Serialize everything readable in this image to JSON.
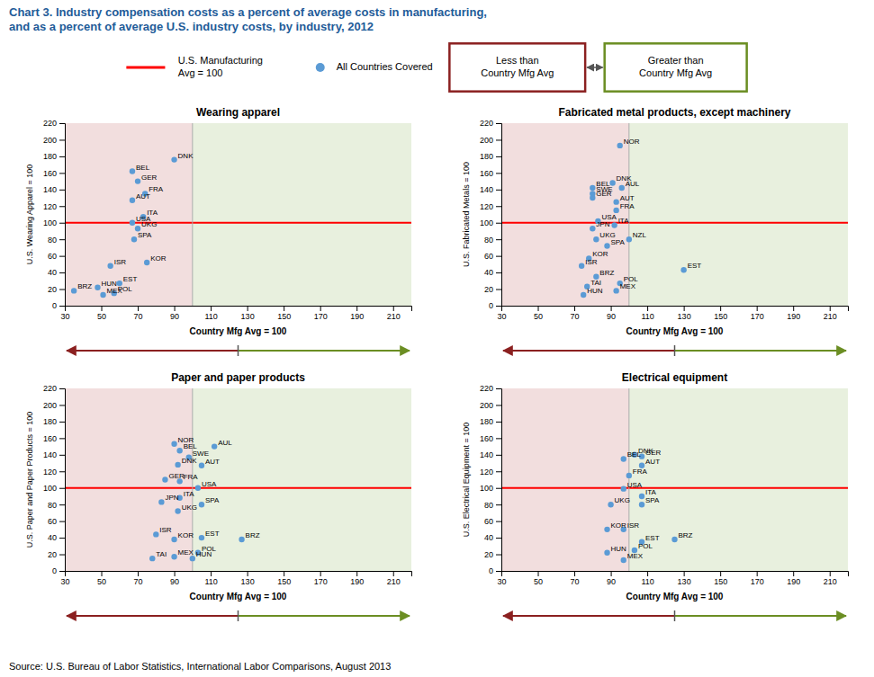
{
  "title": "Chart 3. Industry compensation costs as a percent of average costs in manufacturing,\nand as a percent of average U.S. industry costs, by industry, 2012",
  "title_color": "#1F5C99",
  "source": "Source: U.S. Bureau of Labor Statistics, International Labor Comparisons, August 2013",
  "annotations": [
    {
      "text": "U.S. Manufacturing\nAvg = 100",
      "color": "red"
    },
    {
      "text": "All Countries Covered",
      "color": "#5B9BD5"
    },
    {
      "text": "Less than\nCountry Mfg Avg",
      "color": "#8B2020"
    },
    {
      "text": "Greater than\nCountry Mfg Avg",
      "color": "#6B8E23"
    }
  ],
  "chart_data": [
    {
      "type": "scatter",
      "title": "Wearing apparel",
      "xlabel": "Country Mfg Avg = 100",
      "ylabel": "U.S. Wearing Apparel = 100",
      "labels": [
        "BRZ",
        "HUN",
        "MEX",
        "POL",
        "EST",
        "ISR",
        "KOR",
        "SPA",
        "UKG",
        "USA",
        "ITA",
        "AUT",
        "FRA",
        "GER",
        "BEL",
        "DNK"
      ],
      "x": [
        35,
        48,
        51,
        57,
        60,
        55,
        75,
        68,
        70,
        67,
        73,
        67,
        74,
        70,
        67,
        90
      ],
      "values": [
        18,
        22,
        13,
        15,
        27,
        48,
        52,
        80,
        93,
        100,
        107,
        127,
        135,
        150,
        162,
        176
      ],
      "color": "#5B9BD5",
      "xlim": [
        30,
        220
      ],
      "ylim": [
        0,
        220
      ],
      "xticks": [
        30,
        50,
        70,
        90,
        110,
        130,
        150,
        170,
        190,
        210
      ],
      "yticks": [
        0,
        20,
        40,
        60,
        80,
        100,
        120,
        140,
        160,
        180,
        200,
        220
      ],
      "grid": false,
      "reference_lines": [
        {
          "axis": "y",
          "value": 100,
          "color": "red"
        },
        {
          "axis": "x",
          "value": 100,
          "color": "#AAAAAA"
        }
      ],
      "background": [
        {
          "from": 30,
          "to": 100,
          "color": "#F2DEDE"
        },
        {
          "from": 100,
          "to": 220,
          "color": "#E8F0DE"
        }
      ]
    },
    {
      "type": "scatter",
      "title": "Fabricated metal products, except machinery",
      "xlabel": "Country Mfg Avg = 100",
      "ylabel": "U.S. Fabricated Metals = 100",
      "labels": [
        "HUN",
        "TAI",
        "BRZ",
        "POL",
        "ISR",
        "KOR",
        "SPA",
        "UKG",
        "JPN",
        "NZL",
        "ITA",
        "USA",
        "FRA",
        "AUT",
        "GER",
        "SWE",
        "BEL",
        "AUL",
        "DNK",
        "NOR",
        "EST",
        "MEX"
      ],
      "x": [
        75,
        77,
        82,
        95,
        74,
        78,
        88,
        82,
        80,
        100,
        92,
        83,
        93,
        93,
        80,
        80,
        80,
        96,
        91,
        95,
        130,
        93
      ],
      "values": [
        13,
        23,
        35,
        27,
        48,
        57,
        72,
        80,
        93,
        80,
        97,
        102,
        115,
        125,
        130,
        135,
        142,
        142,
        148,
        193,
        43,
        18
      ],
      "color": "#5B9BD5",
      "xlim": [
        30,
        220
      ],
      "ylim": [
        0,
        220
      ],
      "xticks": [
        30,
        50,
        70,
        90,
        110,
        130,
        150,
        170,
        190,
        210
      ],
      "yticks": [
        0,
        20,
        40,
        60,
        80,
        100,
        120,
        140,
        160,
        180,
        200,
        220
      ],
      "grid": false,
      "reference_lines": [
        {
          "axis": "y",
          "value": 100,
          "color": "red"
        },
        {
          "axis": "x",
          "value": 100,
          "color": "#AAAAAA"
        }
      ],
      "background": [
        {
          "from": 30,
          "to": 100,
          "color": "#F2DEDE"
        },
        {
          "from": 100,
          "to": 220,
          "color": "#E8F0DE"
        }
      ]
    },
    {
      "type": "scatter",
      "title": "Paper and paper products",
      "xlabel": "Country Mfg Avg = 100",
      "ylabel": "U.S. Paper and Paper Products = 100",
      "labels": [
        "TAI",
        "MEX",
        "POL",
        "HUN",
        "KOR",
        "ISR",
        "EST",
        "BRZ",
        "UKG",
        "SPA",
        "ITA",
        "JPN",
        "FRA",
        "GER",
        "USA",
        "AUT",
        "SWE",
        "DNK",
        "BEL",
        "AUL",
        "NOR"
      ],
      "x": [
        78,
        90,
        103,
        100,
        90,
        80,
        105,
        127,
        92,
        105,
        93,
        83,
        93,
        85,
        103,
        105,
        98,
        92,
        93,
        112,
        90
      ],
      "values": [
        15,
        17,
        22,
        15,
        38,
        44,
        40,
        38,
        72,
        80,
        88,
        83,
        108,
        110,
        100,
        127,
        137,
        128,
        145,
        150,
        153
      ],
      "color": "#5B9BD5",
      "xlim": [
        30,
        220
      ],
      "ylim": [
        0,
        220
      ],
      "xticks": [
        30,
        50,
        70,
        90,
        110,
        130,
        150,
        170,
        190,
        210
      ],
      "yticks": [
        0,
        20,
        40,
        60,
        80,
        100,
        120,
        140,
        160,
        180,
        200,
        220
      ],
      "grid": false,
      "reference_lines": [
        {
          "axis": "y",
          "value": 100,
          "color": "red"
        },
        {
          "axis": "x",
          "value": 100,
          "color": "#AAAAAA"
        }
      ],
      "background": [
        {
          "from": 30,
          "to": 100,
          "color": "#F2DEDE"
        },
        {
          "from": 100,
          "to": 220,
          "color": "#E8F0DE"
        }
      ]
    },
    {
      "type": "scatter",
      "title": "Electrical equipment",
      "xlabel": "Country Mfg Avg = 100",
      "ylabel": "U.S. Electrical Equipment = 100",
      "labels": [
        "MEX",
        "HUN",
        "POL",
        "EST",
        "BRZ",
        "KOR",
        "ISR",
        "UKG",
        "SPA",
        "ITA",
        "USA",
        "FRA",
        "AUT",
        "BEL",
        "DNK",
        "GER"
      ],
      "x": [
        97,
        88,
        103,
        107,
        125,
        88,
        97,
        90,
        107,
        107,
        97,
        100,
        107,
        97,
        103,
        107
      ],
      "values": [
        13,
        22,
        25,
        35,
        38,
        50,
        50,
        80,
        80,
        90,
        99,
        115,
        127,
        135,
        140,
        138
      ],
      "color": "#5B9BD5",
      "xlim": [
        30,
        220
      ],
      "ylim": [
        0,
        220
      ],
      "xticks": [
        30,
        50,
        70,
        90,
        110,
        130,
        150,
        170,
        190,
        210
      ],
      "yticks": [
        0,
        20,
        40,
        60,
        80,
        100,
        120,
        140,
        160,
        180,
        200,
        220
      ],
      "grid": false,
      "reference_lines": [
        {
          "axis": "y",
          "value": 100,
          "color": "red"
        },
        {
          "axis": "x",
          "value": 100,
          "color": "#AAAAAA"
        }
      ],
      "background": [
        {
          "from": 30,
          "to": 100,
          "color": "#F2DEDE"
        },
        {
          "from": 100,
          "to": 220,
          "color": "#E8F0DE"
        }
      ]
    }
  ]
}
